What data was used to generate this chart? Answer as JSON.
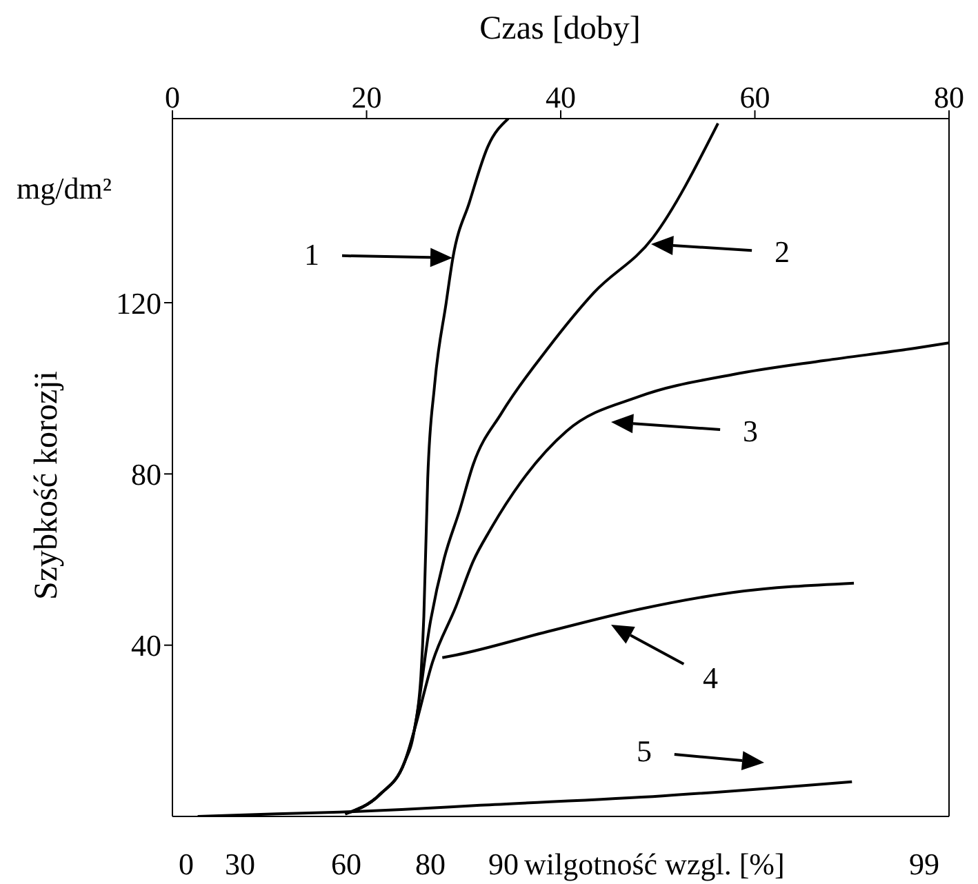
{
  "chart_data": {
    "type": "line",
    "xlabel": "Czas [doby]",
    "ylabel": "Szybkość korozji",
    "xlim": [
      0,
      80
    ],
    "xticks": [
      0,
      20,
      40,
      60,
      80
    ],
    "ylim": [
      0,
      163
    ],
    "yticks": [
      40,
      80,
      120
    ],
    "marker": "none",
    "line_style": "solid",
    "series": [
      {
        "color": "#000000",
        "x": [
          17.8,
          21.4,
          23.9,
          24.9,
          25.6,
          25.9,
          26.3,
          27.0,
          28.2,
          28.9,
          30.6,
          32.5,
          34.6
        ],
        "values": [
          0.6,
          5.2,
          12.6,
          20,
          32.9,
          46.8,
          79,
          100.6,
          120,
          130.6,
          143.5,
          156.5,
          163
        ]
      },
      {
        "color": "#000000",
        "x": [
          17.8,
          21.4,
          23.9,
          24.9,
          26.6,
          28.0,
          29.6,
          31.0,
          33.9,
          38.7,
          43.4,
          49.5,
          56.2
        ],
        "values": [
          0.6,
          5.2,
          12.6,
          20,
          45.8,
          60.3,
          71.6,
          82.3,
          94.2,
          109.4,
          122.3,
          135.2,
          161.9
        ]
      },
      {
        "color": "#000000",
        "x": [
          17.8,
          21.4,
          23.9,
          24.9,
          26.8,
          29.2,
          31.0,
          32.7,
          35.9,
          40.6,
          48.1,
          57.7,
          67.2,
          76.6,
          80
        ],
        "values": [
          0.6,
          5.2,
          12.6,
          20,
          36.1,
          49,
          59.7,
          66.8,
          78.1,
          90,
          98.1,
          103.2,
          106.5,
          109.4,
          110.6
        ]
      },
      {
        "color": "#000000",
        "x": [
          27.8,
          29.2,
          38.7,
          48.1,
          57.7,
          70.2
        ],
        "values": [
          37.1,
          37.7,
          43.2,
          48.4,
          52.3,
          54.5
        ]
      },
      {
        "color": "#000000",
        "x": [
          2.6,
          10.7,
          17.2,
          23.6,
          31.7,
          50.5,
          70.0
        ],
        "values": [
          0,
          0.6,
          1,
          1.6,
          2.6,
          4.8,
          8.1
        ]
      }
    ],
    "annotations": [
      "mg/dm²",
      "0",
      "30",
      "60",
      "80",
      "90",
      "wilgotność wzgl. [%]",
      "99",
      "1",
      "2",
      "3",
      "4",
      "5"
    ]
  }
}
